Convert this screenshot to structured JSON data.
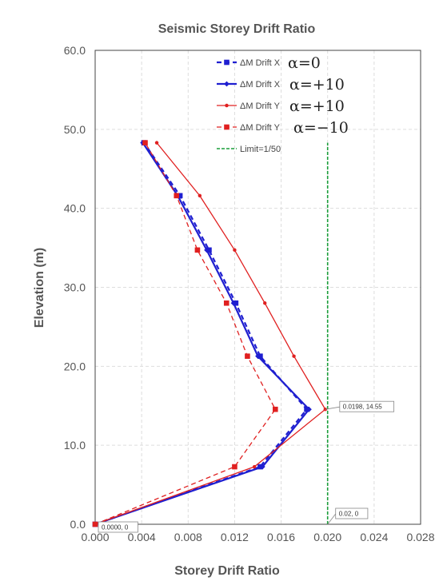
{
  "chart_data": {
    "type": "line",
    "title": "Seismic Storey Drift Ratio",
    "xlabel": "Storey Drift Ratio",
    "ylabel": "Elevation (m)",
    "xlim": [
      0,
      0.028
    ],
    "ylim": [
      0,
      60
    ],
    "x_ticks": [
      "0.000",
      "0.004",
      "0.008",
      "0.012",
      "0.016",
      "0.020",
      "0.024",
      "0.028"
    ],
    "y_ticks": [
      "0.0",
      "10.0",
      "20.0",
      "30.0",
      "40.0",
      "50.0",
      "60.0"
    ],
    "grid": true,
    "legend_position": "top-right",
    "series": [
      {
        "label": "ΔM Drift X",
        "alpha_label": "α=0",
        "color": "#1f1fd0",
        "line_style": "dashed",
        "marker": "square",
        "points": [
          [
            0.0,
            0.0
          ],
          [
            0.0142,
            7.28
          ],
          [
            0.0182,
            14.55
          ],
          [
            0.0142,
            21.28
          ],
          [
            0.0121,
            28.0
          ],
          [
            0.0098,
            34.72
          ],
          [
            0.0073,
            41.6
          ],
          [
            0.0042,
            48.3
          ]
        ]
      },
      {
        "label": "ΔM Drift X",
        "alpha_label": "α=+10",
        "color": "#1f1fd0",
        "line_style": "solid",
        "marker": "diamond",
        "points": [
          [
            0.0,
            0.0
          ],
          [
            0.0144,
            7.28
          ],
          [
            0.0184,
            14.55
          ],
          [
            0.014,
            21.28
          ],
          [
            0.0119,
            28.0
          ],
          [
            0.0096,
            34.72
          ],
          [
            0.0071,
            41.6
          ],
          [
            0.0041,
            48.3
          ]
        ]
      },
      {
        "label": "ΔM Drift Y",
        "alpha_label": "α=+10",
        "color": "#e02020",
        "line_style": "solid",
        "marker": "circle",
        "points": [
          [
            0.0,
            0.0
          ],
          [
            0.0137,
            7.28
          ],
          [
            0.0198,
            14.55
          ],
          [
            0.0171,
            21.28
          ],
          [
            0.0146,
            28.0
          ],
          [
            0.012,
            34.72
          ],
          [
            0.009,
            41.6
          ],
          [
            0.0053,
            48.3
          ]
        ]
      },
      {
        "label": "ΔM Drift Y",
        "alpha_label": "α=−10",
        "color": "#e02020",
        "line_style": "dashed",
        "marker": "square",
        "points": [
          [
            0.0,
            0.0
          ],
          [
            0.012,
            7.28
          ],
          [
            0.0155,
            14.55
          ],
          [
            0.0131,
            21.28
          ],
          [
            0.0113,
            28.0
          ],
          [
            0.0088,
            34.72
          ],
          [
            0.007,
            41.6
          ],
          [
            0.0043,
            48.3
          ]
        ]
      },
      {
        "label": "Limit=1/50",
        "color": "#1a9e3a",
        "line_style": "dashed",
        "marker": "none",
        "points": [
          [
            0.02,
            0.0
          ],
          [
            0.02,
            48.3
          ]
        ]
      }
    ],
    "annotations": [
      {
        "text": "0.0198, 14.55",
        "x": 0.0198,
        "y": 14.55
      },
      {
        "text": "0.0000, 0",
        "x": 0.0,
        "y": 0.0
      },
      {
        "text": "0.02, 0",
        "x": 0.02,
        "y": 0.0
      }
    ]
  }
}
